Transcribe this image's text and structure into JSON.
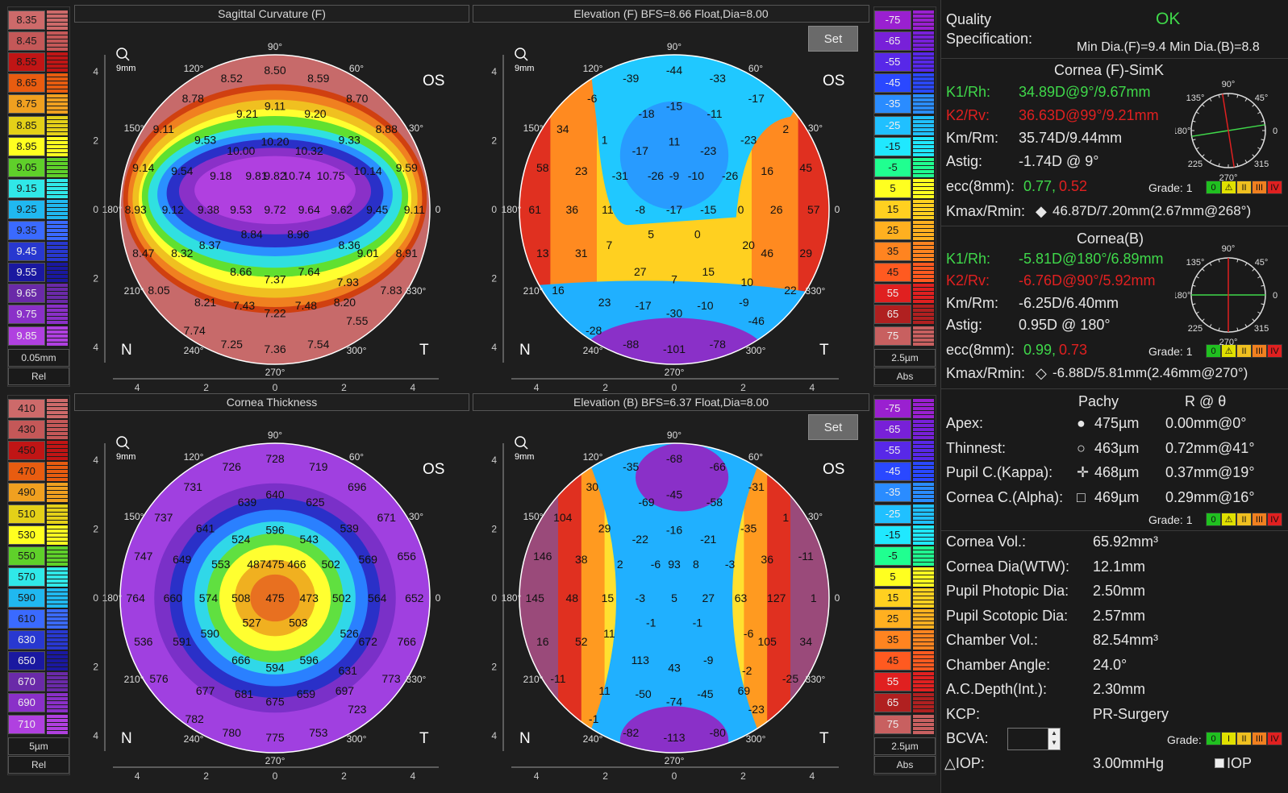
{
  "colors": {
    "green": "#3fd84a",
    "red": "#e02020",
    "accent": "#4ec24e"
  },
  "left_scales": {
    "top": {
      "values": [
        "8.35",
        "8.45",
        "8.55",
        "8.65",
        "8.75",
        "8.85",
        "8.95",
        "9.05",
        "9.15",
        "9.25",
        "9.35",
        "9.45",
        "9.55",
        "9.65",
        "9.75",
        "9.85"
      ],
      "step": "0.05mm",
      "mode": "Rel"
    },
    "bottom": {
      "values": [
        "410",
        "430",
        "450",
        "470",
        "490",
        "510",
        "530",
        "550",
        "570",
        "590",
        "610",
        "630",
        "650",
        "670",
        "690",
        "710"
      ],
      "step": "5µm",
      "mode": "Rel"
    }
  },
  "right_scales": {
    "top": {
      "values": [
        "-75",
        "-65",
        "-55",
        "-45",
        "-35",
        "-25",
        "-15",
        "-5",
        "5",
        "15",
        "25",
        "35",
        "45",
        "55",
        "65",
        "75"
      ],
      "step": "2.5µm",
      "mode": "Abs"
    },
    "bottom": {
      "values": [
        "-75",
        "-65",
        "-55",
        "-45",
        "-35",
        "-25",
        "-15",
        "-5",
        "5",
        "15",
        "25",
        "35",
        "45",
        "55",
        "65",
        "75"
      ],
      "step": "2.5µm",
      "mode": "Abs"
    }
  },
  "maps": {
    "sag": {
      "title": "Sagittal Curvature (F)",
      "set": "",
      "values": [
        "8.50",
        "8.52",
        "8.59",
        "8.78",
        "8.70",
        "9.21",
        "9.11",
        "9.20",
        "9.11",
        "8.88",
        "9.53",
        "10.20",
        "9.33",
        "10.00",
        "10.32",
        "9.14",
        "9.54",
        "9.82",
        "10.74",
        "10.14",
        "9.59",
        "9.18",
        "9.81",
        "10.75",
        "8.93",
        "9.12",
        "9.38",
        "9.53",
        "9.72",
        "9.64",
        "9.62",
        "9.45",
        "9.11",
        "8.84",
        "8.96",
        "8.37",
        "8.36",
        "8.47",
        "8.32",
        "9.01",
        "8.91",
        "8.66",
        "7.64",
        "8.05",
        "7.37",
        "7.93",
        "7.83",
        "8.21",
        "8.20",
        "7.43",
        "7.48",
        "7.22",
        "7.55",
        "7.74",
        "7.25",
        "7.54",
        "7.36"
      ]
    },
    "elevf": {
      "title": "Elevation (F) BFS=8.66 Float,Dia=8.00",
      "set": "Set",
      "values": [
        "-44",
        "-39",
        "-33",
        "-6",
        "-17",
        "-18",
        "-15",
        "-11",
        "34",
        "2",
        "1",
        "11",
        "-23",
        "-17",
        "-23",
        "58",
        "23",
        "-9",
        "-10",
        "16",
        "45",
        "-31",
        "-26",
        "-26",
        "61",
        "36",
        "11",
        "-8",
        "-17",
        "-15",
        "0",
        "26",
        "57",
        "5",
        "0",
        "7",
        "20",
        "13",
        "31",
        "46",
        "29",
        "27",
        "15",
        "16",
        "7",
        "10",
        "22",
        "23",
        "-9",
        "-17",
        "-10",
        "-30",
        "-46",
        "-28",
        "-88",
        "-78",
        "-101"
      ]
    },
    "thick": {
      "title": "Cornea Thickness",
      "set": "",
      "values": [
        "728",
        "726",
        "719",
        "731",
        "696",
        "639",
        "640",
        "625",
        "737",
        "671",
        "641",
        "596",
        "539",
        "524",
        "543",
        "747",
        "649",
        "475",
        "466",
        "569",
        "656",
        "553",
        "487",
        "502",
        "764",
        "660",
        "574",
        "508",
        "475",
        "473",
        "502",
        "564",
        "652",
        "527",
        "503",
        "590",
        "526",
        "536",
        "591",
        "672",
        "766",
        "666",
        "596",
        "576",
        "594",
        "631",
        "773",
        "677",
        "697",
        "681",
        "659",
        "675",
        "723",
        "782",
        "780",
        "753",
        "775"
      ]
    },
    "elevb": {
      "title": "Elevation (B) BFS=6.37 Float,Dia=8.00",
      "set": "Set",
      "values": [
        "-68",
        "-35",
        "-66",
        "30",
        "-31",
        "-69",
        "-45",
        "-58",
        "104",
        "1",
        "29",
        "-16",
        "-35",
        "-22",
        "-21",
        "146",
        "38",
        "93",
        "8",
        "36",
        "-11",
        "2",
        "-6",
        "-3",
        "145",
        "48",
        "15",
        "-3",
        "5",
        "27",
        "63",
        "127",
        "1",
        "-1",
        "-1",
        "11",
        "-6",
        "16",
        "52",
        "105",
        "34",
        "113",
        "-9",
        "-11",
        "43",
        "-2",
        "-25",
        "11",
        "69",
        "-50",
        "-45",
        "-74",
        "-23",
        "-1",
        "-82",
        "-80",
        "-113"
      ]
    }
  },
  "map_labels": {
    "os": "OS",
    "n": "N",
    "t": "T",
    "mm": "9mm",
    "ticks": [
      "4",
      "2",
      "0",
      "2",
      "4"
    ]
  },
  "right": {
    "quality_label": "Quality",
    "spec_label": "Specification:",
    "quality_value": "OK",
    "min_dia": "Min Dia.(F)=9.4  Min Dia.(B)=8.8",
    "front": {
      "title": "Cornea (F)-SimK",
      "k1_label": "K1/Rh:",
      "k1": "34.89D@9°/9.67mm",
      "k2_label": "K2/Rv:",
      "k2": "36.63D@99°/9.21mm",
      "km_label": "Km/Rm:",
      "km": "35.74D/9.44mm",
      "astig_label": "Astig:",
      "astig": "-1.74D @ 9°",
      "ecc_label": "ecc(8mm):",
      "ecc1": "0.77,",
      "ecc2": "0.52",
      "grade": "Grade: 1",
      "kmax_label": "Kmax/Rmin:",
      "kmax": "46.87D/7.20mm(2.67mm@268°)"
    },
    "back": {
      "title": "Cornea(B)",
      "k1_label": "K1/Rh:",
      "k1": "-5.81D@180°/6.89mm",
      "k2_label": "K2/Rv:",
      "k2": "-6.76D@90°/5.92mm",
      "km_label": "Km/Rm:",
      "km": "-6.25D/6.40mm",
      "astig_label": "Astig:",
      "astig": "0.95D @ 180°",
      "ecc_label": "ecc(8mm):",
      "ecc1": "0.99,",
      "ecc2": "0.73",
      "grade": "Grade: 1",
      "kmax_label": "Kmax/Rmin:",
      "kmax": "-6.88D/5.81mm(2.46mm@270°)"
    },
    "pachy": {
      "h_pachy": "Pachy",
      "h_r": "R @ θ",
      "rows": [
        {
          "label": "Apex:",
          "val": "475µm",
          "r": "0.00mm@0°"
        },
        {
          "label": "Thinnest:",
          "val": "463µm",
          "r": "0.72mm@41°"
        },
        {
          "label": "Pupil C.(Kappa):",
          "val": "468µm",
          "r": "0.37mm@19°"
        },
        {
          "label": "Cornea C.(Alpha):",
          "val": "469µm",
          "r": "0.29mm@16°"
        }
      ],
      "grade": "Grade: 1"
    },
    "stats": [
      {
        "label": "Cornea Vol.:",
        "val": "65.92mm³"
      },
      {
        "label": "Cornea Dia(WTW):",
        "val": "12.1mm"
      },
      {
        "label": "Pupil Photopic Dia:",
        "val": "2.50mm"
      },
      {
        "label": "Pupil Scotopic Dia:",
        "val": "2.57mm"
      },
      {
        "label": "Chamber Vol.:",
        "val": "82.54mm³"
      },
      {
        "label": "Chamber Angle:",
        "val": "24.0°"
      },
      {
        "label": "A.C.Depth(Int.):",
        "val": "2.30mm"
      },
      {
        "label": "KCP:",
        "val": "PR-Surgery"
      }
    ],
    "bcva_label": "BCVA:",
    "grade_label": "Grade:",
    "iop_label": "△IOP:",
    "iop_val": "3.00mmHg",
    "iop_check": "IOP",
    "grade_boxes": [
      "0",
      "⚠",
      "II",
      "III",
      "IV"
    ],
    "grade_boxes2": [
      "0",
      "I",
      "II",
      "III",
      "IV"
    ],
    "dial_labels": [
      "90°",
      "45°",
      "0",
      "315",
      "270°",
      "225",
      "180°",
      "135°"
    ]
  }
}
